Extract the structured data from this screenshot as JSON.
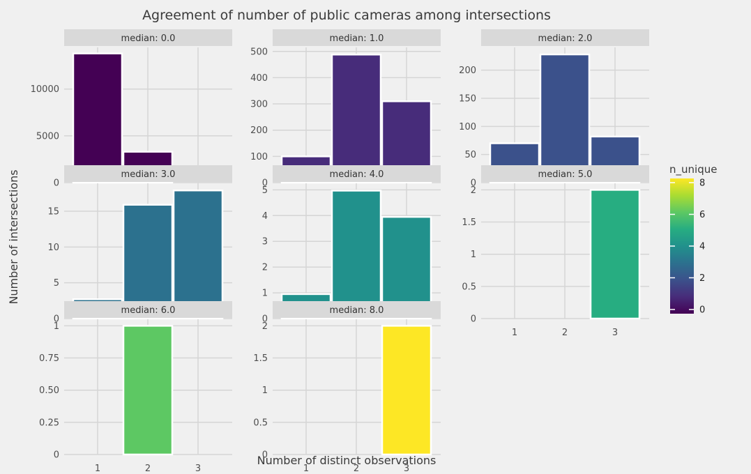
{
  "title": "Agreement of number of public cameras among intersections",
  "xlabel": "Number of distinct observations",
  "ylabel": "Number of intersections",
  "legend": {
    "title": "n_unique",
    "ticks": [
      "0",
      "2",
      "4",
      "6",
      "8"
    ],
    "placement": "right",
    "colormap": "viridis",
    "range": [
      0,
      8
    ]
  },
  "chart_data": {
    "type": "bar",
    "grid": true,
    "x_categories": [
      "1",
      "2",
      "3"
    ],
    "facets": [
      {
        "strip": "median: 0.0",
        "n_unique": 0,
        "values": [
          13800,
          3300,
          0
        ],
        "ylim": [
          0,
          14300
        ],
        "yticks": [
          0,
          5000,
          10000
        ],
        "ytick_labels": [
          "0",
          "5000",
          "10000"
        ],
        "color": "#440154"
      },
      {
        "strip": "median: 1.0",
        "n_unique": 1,
        "values": [
          100,
          488,
          310
        ],
        "ylim": [
          0,
          510
        ],
        "yticks": [
          0,
          100,
          200,
          300,
          400,
          500
        ],
        "ytick_labels": [
          "0",
          "100",
          "200",
          "300",
          "400",
          "500"
        ],
        "color": "#472c7a"
      },
      {
        "strip": "median: 2.0",
        "n_unique": 2,
        "values": [
          70,
          228,
          82
        ],
        "ylim": [
          0,
          238
        ],
        "yticks": [
          0,
          50,
          100,
          150,
          200
        ],
        "ytick_labels": [
          "0",
          "50",
          "100",
          "150",
          "200"
        ],
        "color": "#3b518b"
      },
      {
        "strip": "median: 3.0",
        "n_unique": 3,
        "values": [
          2.7,
          15.9,
          17.9
        ],
        "ylim": [
          0,
          18.7
        ],
        "yticks": [
          0,
          5,
          10,
          15
        ],
        "ytick_labels": [
          "0",
          "5",
          "10",
          "15"
        ],
        "color": "#2c718e"
      },
      {
        "strip": "median: 4.0",
        "n_unique": 4,
        "values": [
          0.95,
          4.97,
          3.95
        ],
        "ylim": [
          0,
          5.2
        ],
        "yticks": [
          0,
          1,
          2,
          3,
          4,
          5
        ],
        "ytick_labels": [
          "0",
          "1",
          "2",
          "3",
          "4",
          "5"
        ],
        "color": "#21918c"
      },
      {
        "strip": "median: 5.0",
        "n_unique": 5,
        "values": [
          0,
          0,
          2
        ],
        "ylim": [
          0,
          2.08
        ],
        "yticks": [
          0,
          0.5,
          1,
          1.5,
          2
        ],
        "ytick_labels": [
          "0",
          "0.5",
          "1",
          "1.5",
          "2"
        ],
        "color": "#27ad81"
      },
      {
        "strip": "median: 6.0",
        "n_unique": 6,
        "values": [
          0,
          1,
          0
        ],
        "ylim": [
          0,
          1.04
        ],
        "yticks": [
          0,
          0.25,
          0.5,
          0.75,
          1
        ],
        "ytick_labels": [
          "0",
          "0.25",
          "0.50",
          "0.75",
          "1"
        ],
        "color": "#5dc863"
      },
      {
        "strip": "median: 8.0",
        "n_unique": 8,
        "values": [
          0,
          0,
          2
        ],
        "ylim": [
          0,
          2.08
        ],
        "yticks": [
          0,
          0.5,
          1,
          1.5,
          2
        ],
        "ytick_labels": [
          "0",
          "0.5",
          "1",
          "1.5",
          "2"
        ],
        "color": "#fde725"
      }
    ]
  }
}
